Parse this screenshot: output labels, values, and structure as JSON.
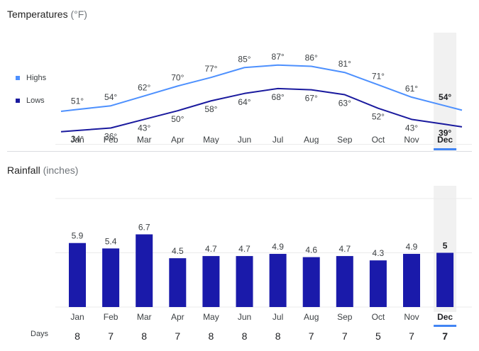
{
  "temperatures": {
    "title": "Temperatures",
    "unit": "(°F)",
    "legend": {
      "highs": "Highs",
      "lows": "Lows"
    },
    "colors": {
      "highs": "#4d90fe",
      "lows": "#1a1a9e"
    }
  },
  "rainfall": {
    "title": "Rainfall",
    "unit": "(inches)",
    "bar_color": "#1a1aaa"
  },
  "days_label": "Days",
  "selected_month": "Dec",
  "chart_data": [
    {
      "type": "line",
      "title": "Temperatures (°F)",
      "categories": [
        "Jan",
        "Feb",
        "Mar",
        "Apr",
        "May",
        "Jun",
        "Jul",
        "Aug",
        "Sep",
        "Oct",
        "Nov",
        "Dec"
      ],
      "series": [
        {
          "name": "Highs",
          "values": [
            51,
            54,
            62,
            70,
            77,
            85,
            87,
            86,
            81,
            71,
            61,
            54
          ],
          "labels": [
            "51°",
            "54°",
            "62°",
            "70°",
            "77°",
            "85°",
            "87°",
            "86°",
            "81°",
            "71°",
            "61°",
            "54°"
          ]
        },
        {
          "name": "Lows",
          "values": [
            34,
            36,
            43,
            50,
            58,
            64,
            68,
            67,
            63,
            52,
            43,
            39
          ],
          "labels": [
            "34°",
            "36°",
            "43°",
            "50°",
            "58°",
            "64°",
            "68°",
            "67°",
            "63°",
            "52°",
            "43°",
            "39°"
          ]
        }
      ],
      "legend": "left"
    },
    {
      "type": "bar",
      "title": "Rainfall (inches)",
      "categories": [
        "Jan",
        "Feb",
        "Mar",
        "Apr",
        "May",
        "Jun",
        "Jul",
        "Aug",
        "Sep",
        "Oct",
        "Nov",
        "Dec"
      ],
      "values": [
        5.9,
        5.4,
        6.7,
        4.5,
        4.7,
        4.7,
        4.9,
        4.6,
        4.7,
        4.3,
        4.9,
        5
      ],
      "labels": [
        "5.9",
        "5.4",
        "6.7",
        "4.5",
        "4.7",
        "4.7",
        "4.9",
        "4.6",
        "4.7",
        "4.3",
        "4.9",
        "5"
      ],
      "days": [
        "8",
        "7",
        "8",
        "7",
        "8",
        "8",
        "8",
        "7",
        "7",
        "5",
        "7",
        "7"
      ],
      "ylim": [
        0,
        15
      ],
      "grid": true
    }
  ]
}
